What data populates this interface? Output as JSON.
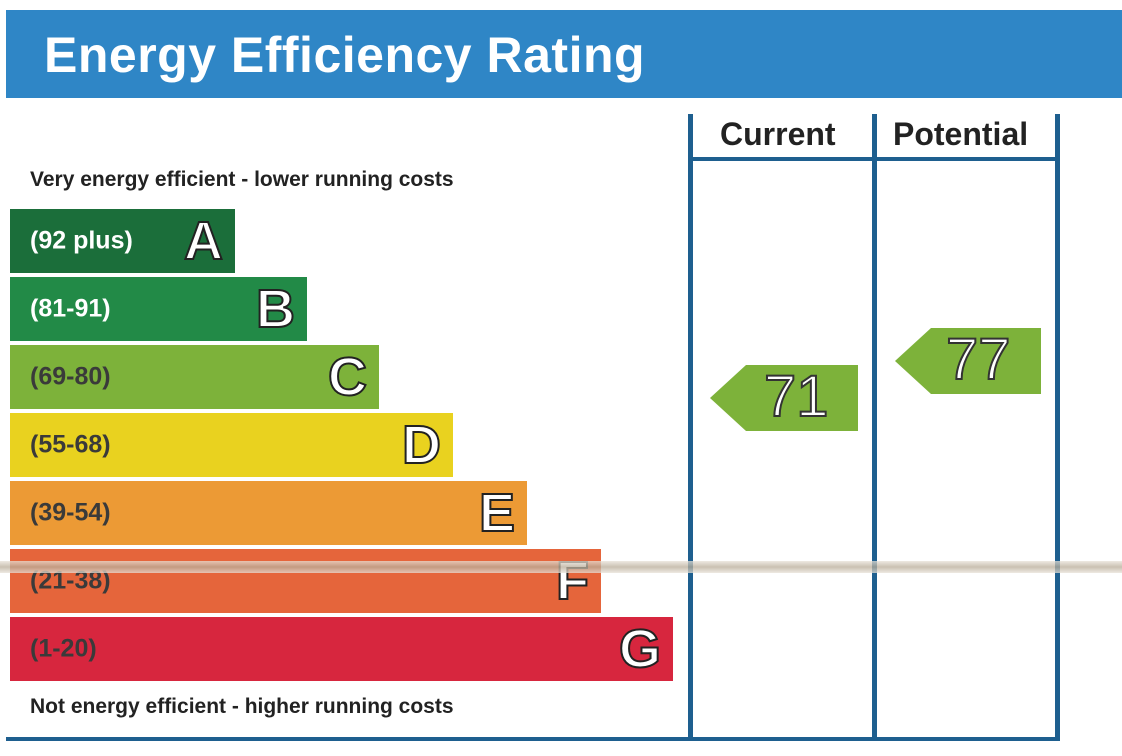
{
  "title": "Energy Efficiency Rating",
  "top_caption": "Very energy efficient - lower running costs",
  "bottom_caption": "Not energy efficient - higher running costs",
  "columns": {
    "current": "Current",
    "potential": "Potential"
  },
  "chart_data": {
    "type": "bar",
    "bands": [
      {
        "letter": "A",
        "range": "(92 plus)",
        "color": "#1b6e3a"
      },
      {
        "letter": "B",
        "range": "(81-91)",
        "color": "#228a47"
      },
      {
        "letter": "C",
        "range": "(69-80)",
        "color": "#7db23a"
      },
      {
        "letter": "D",
        "range": "(55-68)",
        "color": "#e9d21f"
      },
      {
        "letter": "E",
        "range": "(39-54)",
        "color": "#ec9a35"
      },
      {
        "letter": "F",
        "range": "(21-38)",
        "color": "#e5653b"
      },
      {
        "letter": "G",
        "range": "(1-20)",
        "color": "#d7263e"
      }
    ],
    "current": {
      "value": 71,
      "label": "71",
      "band": "C",
      "color": "#7db23a"
    },
    "potential": {
      "value": 77,
      "label": "77",
      "band": "C",
      "color": "#7db23a"
    }
  }
}
